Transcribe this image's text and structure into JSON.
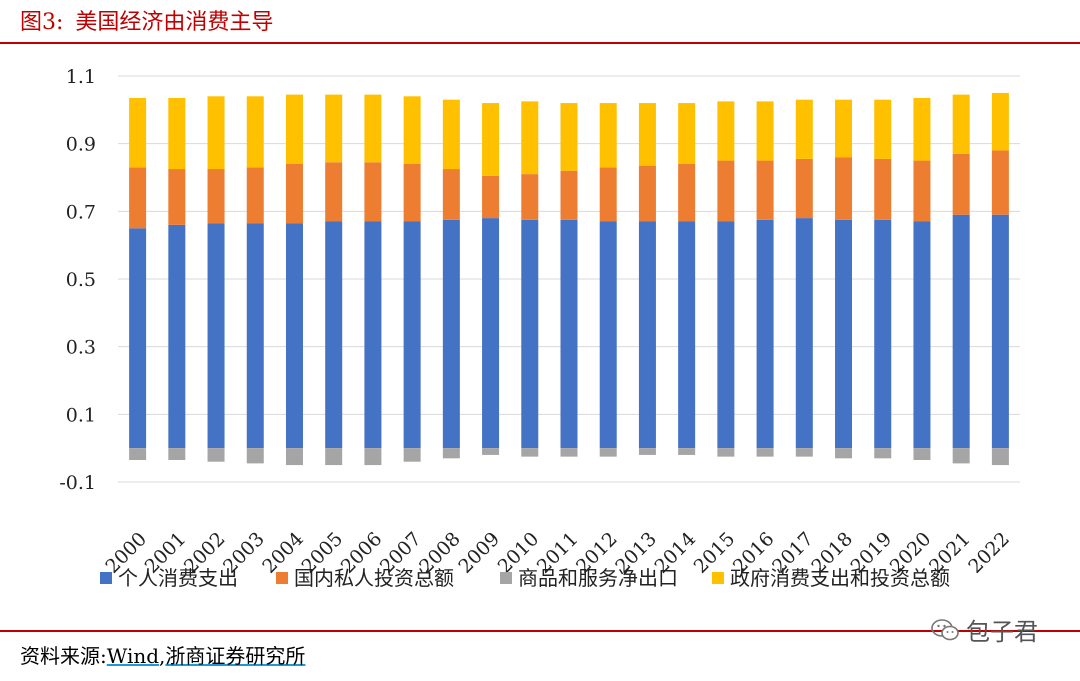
{
  "header": {
    "figure_number": "图3:",
    "title": "美国经济由消费主导"
  },
  "footer": {
    "source_label": "资料来源:",
    "source_wind": "Wind",
    "source_sep": ",",
    "source_inst": "浙商证券研究所",
    "watermark": "包子君"
  },
  "chart_data": {
    "type": "bar",
    "stacked": true,
    "categories": [
      "2000",
      "2001",
      "2002",
      "2003",
      "2004",
      "2005",
      "2006",
      "2007",
      "2008",
      "2009",
      "2010",
      "2011",
      "2012",
      "2013",
      "2014",
      "2015",
      "2016",
      "2017",
      "2018",
      "2019",
      "2020",
      "2021",
      "2022"
    ],
    "series": [
      {
        "name": "个人消费支出",
        "color": "#4472c4",
        "values": [
          0.65,
          0.66,
          0.665,
          0.665,
          0.665,
          0.67,
          0.67,
          0.67,
          0.675,
          0.68,
          0.675,
          0.675,
          0.67,
          0.67,
          0.67,
          0.67,
          0.675,
          0.68,
          0.675,
          0.675,
          0.67,
          0.69,
          0.69
        ]
      },
      {
        "name": "国内私人投资总额",
        "color": "#ed7d31",
        "values": [
          0.18,
          0.165,
          0.16,
          0.165,
          0.175,
          0.175,
          0.175,
          0.17,
          0.15,
          0.125,
          0.135,
          0.145,
          0.16,
          0.165,
          0.17,
          0.18,
          0.175,
          0.175,
          0.185,
          0.18,
          0.18,
          0.18,
          0.19
        ]
      },
      {
        "name": "商品和服务净出口",
        "color": "#a5a5a5",
        "values": [
          -0.035,
          -0.035,
          -0.04,
          -0.045,
          -0.05,
          -0.05,
          -0.05,
          -0.04,
          -0.03,
          -0.02,
          -0.025,
          -0.025,
          -0.025,
          -0.02,
          -0.02,
          -0.025,
          -0.025,
          -0.025,
          -0.03,
          -0.03,
          -0.035,
          -0.045,
          -0.05
        ]
      },
      {
        "name": "政府消费支出和投资总额",
        "color": "#ffc000",
        "values": [
          0.205,
          0.21,
          0.215,
          0.21,
          0.205,
          0.2,
          0.2,
          0.2,
          0.205,
          0.215,
          0.215,
          0.2,
          0.19,
          0.185,
          0.18,
          0.175,
          0.175,
          0.175,
          0.17,
          0.175,
          0.185,
          0.175,
          0.17
        ]
      }
    ],
    "y_ticks": [
      "1.1",
      "0.9",
      "0.7",
      "0.5",
      "0.3",
      "0.1",
      "-0.1"
    ],
    "y_tick_values": [
      1.1,
      0.9,
      0.7,
      0.5,
      0.3,
      0.1,
      -0.1
    ],
    "ylim": [
      -0.1,
      1.1
    ],
    "grid": true,
    "legend_position": "bottom"
  }
}
